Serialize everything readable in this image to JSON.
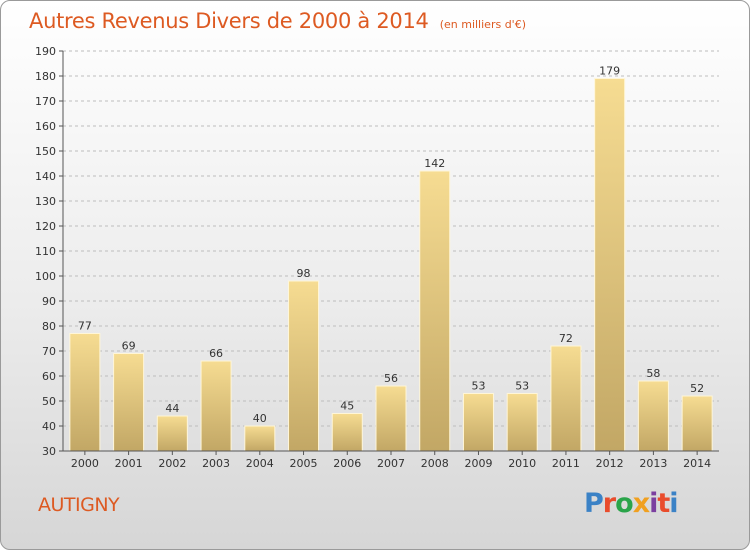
{
  "title": "Autres Revenus Divers de 2000 à 2014",
  "unit_note": "(en milliers d'€)",
  "commune": "AUTIGNY",
  "logo_text": "Proxiti",
  "colors": {
    "accent": "#dd5a22",
    "bar_top": "#f6dc92",
    "bar_bottom": "#c2a765",
    "grid": "#bdbdbd"
  },
  "chart_data": {
    "type": "bar",
    "title": "Autres Revenus Divers de 2000 à 2014",
    "categories": [
      "2000",
      "2001",
      "2002",
      "2003",
      "2004",
      "2005",
      "2006",
      "2007",
      "2008",
      "2009",
      "2010",
      "2011",
      "2012",
      "2013",
      "2014"
    ],
    "values": [
      77,
      69,
      44,
      66,
      40,
      98,
      45,
      56,
      142,
      53,
      53,
      72,
      179,
      58,
      52
    ],
    "ylim": [
      30,
      190
    ],
    "yticks": [
      30,
      40,
      50,
      60,
      70,
      80,
      90,
      100,
      110,
      120,
      130,
      140,
      150,
      160,
      170,
      180,
      190
    ],
    "xlabel": "",
    "ylabel": "",
    "grid": true,
    "legend": "none"
  }
}
